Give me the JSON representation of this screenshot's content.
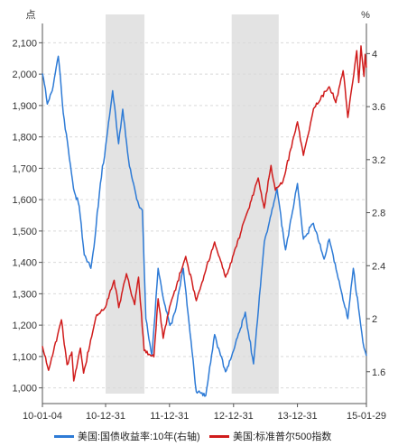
{
  "chart_data": {
    "type": "line",
    "left_unit": "点",
    "right_unit": "%",
    "x_ticks": [
      "10-01-04",
      "10-12-31",
      "11-12-31",
      "12-12-31",
      "13-12-31",
      "15-01-29"
    ],
    "left_axis": {
      "ylim": [
        950,
        2150
      ],
      "ticks": [
        "1,000",
        "1,100",
        "1,200",
        "1,300",
        "1,400",
        "1,500",
        "1,600",
        "1,700",
        "1,800",
        "1,900",
        "2,000",
        "2,100"
      ]
    },
    "right_axis": {
      "ylim": [
        1.36,
        4.2
      ],
      "ticks": [
        "1.6",
        "2",
        "2.4",
        "2.8",
        "3.2",
        "3.6",
        "4"
      ]
    },
    "grid": true,
    "legend_position": "bottom",
    "shaded_periods": [
      [
        "2010-12-31",
        "2011-08-10"
      ],
      [
        "2012-12-20",
        "2013-09-15"
      ]
    ],
    "series": [
      {
        "name": "美国:国债收益率:10年(右轴)",
        "axis": "right",
        "color": "#2e7bd6",
        "points": [
          [
            "2010-01-04",
            3.85
          ],
          [
            "2010-02-01",
            3.62
          ],
          [
            "2010-03-01",
            3.72
          ],
          [
            "2010-04-05",
            3.98
          ],
          [
            "2010-05-03",
            3.55
          ],
          [
            "2010-06-01",
            3.28
          ],
          [
            "2010-07-01",
            2.98
          ],
          [
            "2010-08-02",
            2.85
          ],
          [
            "2010-08-31",
            2.48
          ],
          [
            "2010-10-08",
            2.38
          ],
          [
            "2010-11-01",
            2.62
          ],
          [
            "2010-12-01",
            3.02
          ],
          [
            "2010-12-31",
            3.3
          ],
          [
            "2011-02-09",
            3.72
          ],
          [
            "2011-03-15",
            3.32
          ],
          [
            "2011-04-08",
            3.58
          ],
          [
            "2011-05-16",
            3.15
          ],
          [
            "2011-06-27",
            2.9
          ],
          [
            "2011-07-29",
            2.82
          ],
          [
            "2011-08-18",
            2.0
          ],
          [
            "2011-09-22",
            1.72
          ],
          [
            "2011-10-27",
            2.38
          ],
          [
            "2011-12-01",
            2.12
          ],
          [
            "2012-01-03",
            1.95
          ],
          [
            "2012-02-01",
            2.05
          ],
          [
            "2012-03-19",
            2.38
          ],
          [
            "2012-04-20",
            1.98
          ],
          [
            "2012-06-01",
            1.45
          ],
          [
            "2012-07-25",
            1.42
          ],
          [
            "2012-09-14",
            1.88
          ],
          [
            "2012-11-15",
            1.6
          ],
          [
            "2012-12-31",
            1.76
          ],
          [
            "2013-03-08",
            2.05
          ],
          [
            "2013-04-24",
            1.66
          ],
          [
            "2013-06-25",
            2.58
          ],
          [
            "2013-09-05",
            2.98
          ],
          [
            "2013-10-24",
            2.52
          ],
          [
            "2013-12-31",
            3.02
          ],
          [
            "2014-02-03",
            2.6
          ],
          [
            "2014-04-01",
            2.72
          ],
          [
            "2014-06-01",
            2.45
          ],
          [
            "2014-07-01",
            2.6
          ],
          [
            "2014-08-15",
            2.34
          ],
          [
            "2014-10-15",
            2.0
          ],
          [
            "2014-11-15",
            2.38
          ],
          [
            "2014-12-15",
            2.08
          ],
          [
            "2015-01-15",
            1.78
          ],
          [
            "2015-01-29",
            1.72
          ]
        ]
      },
      {
        "name": "美国:标准普尔500指数",
        "axis": "left",
        "color": "#d01c1c",
        "points": [
          [
            "2010-01-04",
            1133
          ],
          [
            "2010-02-08",
            1056
          ],
          [
            "2010-04-23",
            1217
          ],
          [
            "2010-05-25",
            1074
          ],
          [
            "2010-06-21",
            1114
          ],
          [
            "2010-07-02",
            1022
          ],
          [
            "2010-08-09",
            1127
          ],
          [
            "2010-08-27",
            1047
          ],
          [
            "2010-11-05",
            1225
          ],
          [
            "2010-12-31",
            1258
          ],
          [
            "2011-02-18",
            1343
          ],
          [
            "2011-03-16",
            1256
          ],
          [
            "2011-04-29",
            1364
          ],
          [
            "2011-06-15",
            1265
          ],
          [
            "2011-07-07",
            1353
          ],
          [
            "2011-08-08",
            1119
          ],
          [
            "2011-10-03",
            1099
          ],
          [
            "2011-10-27",
            1284
          ],
          [
            "2011-11-25",
            1158
          ],
          [
            "2011-12-31",
            1257
          ],
          [
            "2012-04-02",
            1419
          ],
          [
            "2012-06-01",
            1278
          ],
          [
            "2012-09-14",
            1465
          ],
          [
            "2012-11-15",
            1353
          ],
          [
            "2012-12-31",
            1426
          ],
          [
            "2013-05-21",
            1669
          ],
          [
            "2013-06-24",
            1573
          ],
          [
            "2013-08-02",
            1709
          ],
          [
            "2013-08-27",
            1630
          ],
          [
            "2013-10-08",
            1656
          ],
          [
            "2013-12-31",
            1848
          ],
          [
            "2014-02-03",
            1741
          ],
          [
            "2014-04-02",
            1890
          ],
          [
            "2014-06-30",
            1960
          ],
          [
            "2014-08-07",
            1909
          ],
          [
            "2014-09-18",
            2011
          ],
          [
            "2014-10-15",
            1862
          ],
          [
            "2014-12-05",
            2075
          ],
          [
            "2014-12-16",
            1973
          ],
          [
            "2014-12-29",
            2090
          ],
          [
            "2015-01-15",
            1993
          ],
          [
            "2015-01-22",
            2063
          ],
          [
            "2015-01-29",
            2021
          ]
        ]
      }
    ]
  }
}
